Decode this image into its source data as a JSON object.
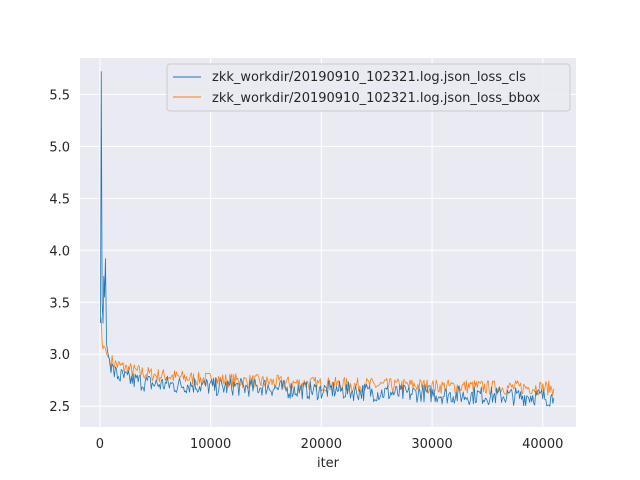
{
  "chart_data": {
    "type": "line",
    "title": "",
    "xlabel": "iter",
    "ylabel": "",
    "xlim": [
      -1800,
      43000
    ],
    "ylim": [
      2.3,
      5.85
    ],
    "xticks": [
      0,
      10000,
      20000,
      30000,
      40000
    ],
    "xtick_labels": [
      "0",
      "10000",
      "20000",
      "30000",
      "40000"
    ],
    "yticks": [
      2.5,
      3.0,
      3.5,
      4.0,
      4.5,
      5.0,
      5.5
    ],
    "ytick_labels": [
      "2.5",
      "3.0",
      "3.5",
      "4.0",
      "4.5",
      "5.0",
      "5.5"
    ],
    "grid": true,
    "legend_position": "top-right",
    "colors": {
      "background": "#eaeaf2",
      "grid": "#ffffff",
      "cls": "#1f77b4",
      "bbox": "#ff7f0e"
    },
    "series": [
      {
        "name": "zkk_workdir/20190910_102321.log.json_loss_cls",
        "color": "#1f77b4",
        "x": [
          50,
          120,
          200,
          280,
          350,
          420,
          500,
          600,
          700,
          850,
          1000,
          1200,
          1500,
          2000,
          2500,
          3000,
          4000,
          5000,
          6000,
          7000,
          8000,
          9000,
          10000,
          11000,
          12000,
          13000,
          14000,
          15000,
          16000,
          17000,
          18000,
          19000,
          20000,
          21000,
          22000,
          23000,
          24000,
          25000,
          26000,
          27000,
          28000,
          29000,
          30000,
          31000,
          32000,
          33000,
          34000,
          35000,
          36000,
          37000,
          38000,
          39000,
          40000,
          41000
        ],
        "y": [
          3.3,
          5.72,
          3.5,
          3.3,
          3.75,
          3.55,
          3.92,
          3.1,
          3.02,
          2.95,
          2.88,
          2.84,
          2.8,
          2.78,
          2.76,
          2.75,
          2.73,
          2.71,
          2.71,
          2.7,
          2.71,
          2.7,
          2.69,
          2.68,
          2.69,
          2.68,
          2.68,
          2.69,
          2.67,
          2.66,
          2.66,
          2.65,
          2.65,
          2.66,
          2.65,
          2.64,
          2.64,
          2.63,
          2.63,
          2.62,
          2.62,
          2.63,
          2.62,
          2.61,
          2.61,
          2.6,
          2.61,
          2.6,
          2.6,
          2.6,
          2.59,
          2.6,
          2.59,
          2.58
        ]
      },
      {
        "name": "zkk_workdir/20190910_102321.log.json_loss_bbox",
        "color": "#ff7f0e",
        "x": [
          50,
          120,
          200,
          280,
          350,
          420,
          500,
          600,
          700,
          850,
          1000,
          1200,
          1500,
          2000,
          2500,
          3000,
          4000,
          5000,
          6000,
          7000,
          8000,
          9000,
          10000,
          11000,
          12000,
          13000,
          14000,
          15000,
          16000,
          17000,
          18000,
          19000,
          20000,
          21000,
          22000,
          23000,
          24000,
          25000,
          26000,
          27000,
          28000,
          29000,
          30000,
          31000,
          32000,
          33000,
          34000,
          35000,
          36000,
          37000,
          38000,
          39000,
          40000,
          41000
        ],
        "y": [
          3.3,
          3.35,
          3.1,
          3.05,
          3.08,
          3.07,
          3.06,
          3.0,
          2.98,
          2.96,
          2.94,
          2.92,
          2.9,
          2.88,
          2.86,
          2.84,
          2.82,
          2.8,
          2.79,
          2.78,
          2.77,
          2.76,
          2.76,
          2.75,
          2.75,
          2.74,
          2.74,
          2.73,
          2.73,
          2.72,
          2.72,
          2.72,
          2.71,
          2.71,
          2.71,
          2.7,
          2.71,
          2.7,
          2.7,
          2.7,
          2.7,
          2.7,
          2.69,
          2.69,
          2.69,
          2.69,
          2.69,
          2.68,
          2.68,
          2.68,
          2.68,
          2.68,
          2.68,
          2.67
        ]
      }
    ]
  }
}
